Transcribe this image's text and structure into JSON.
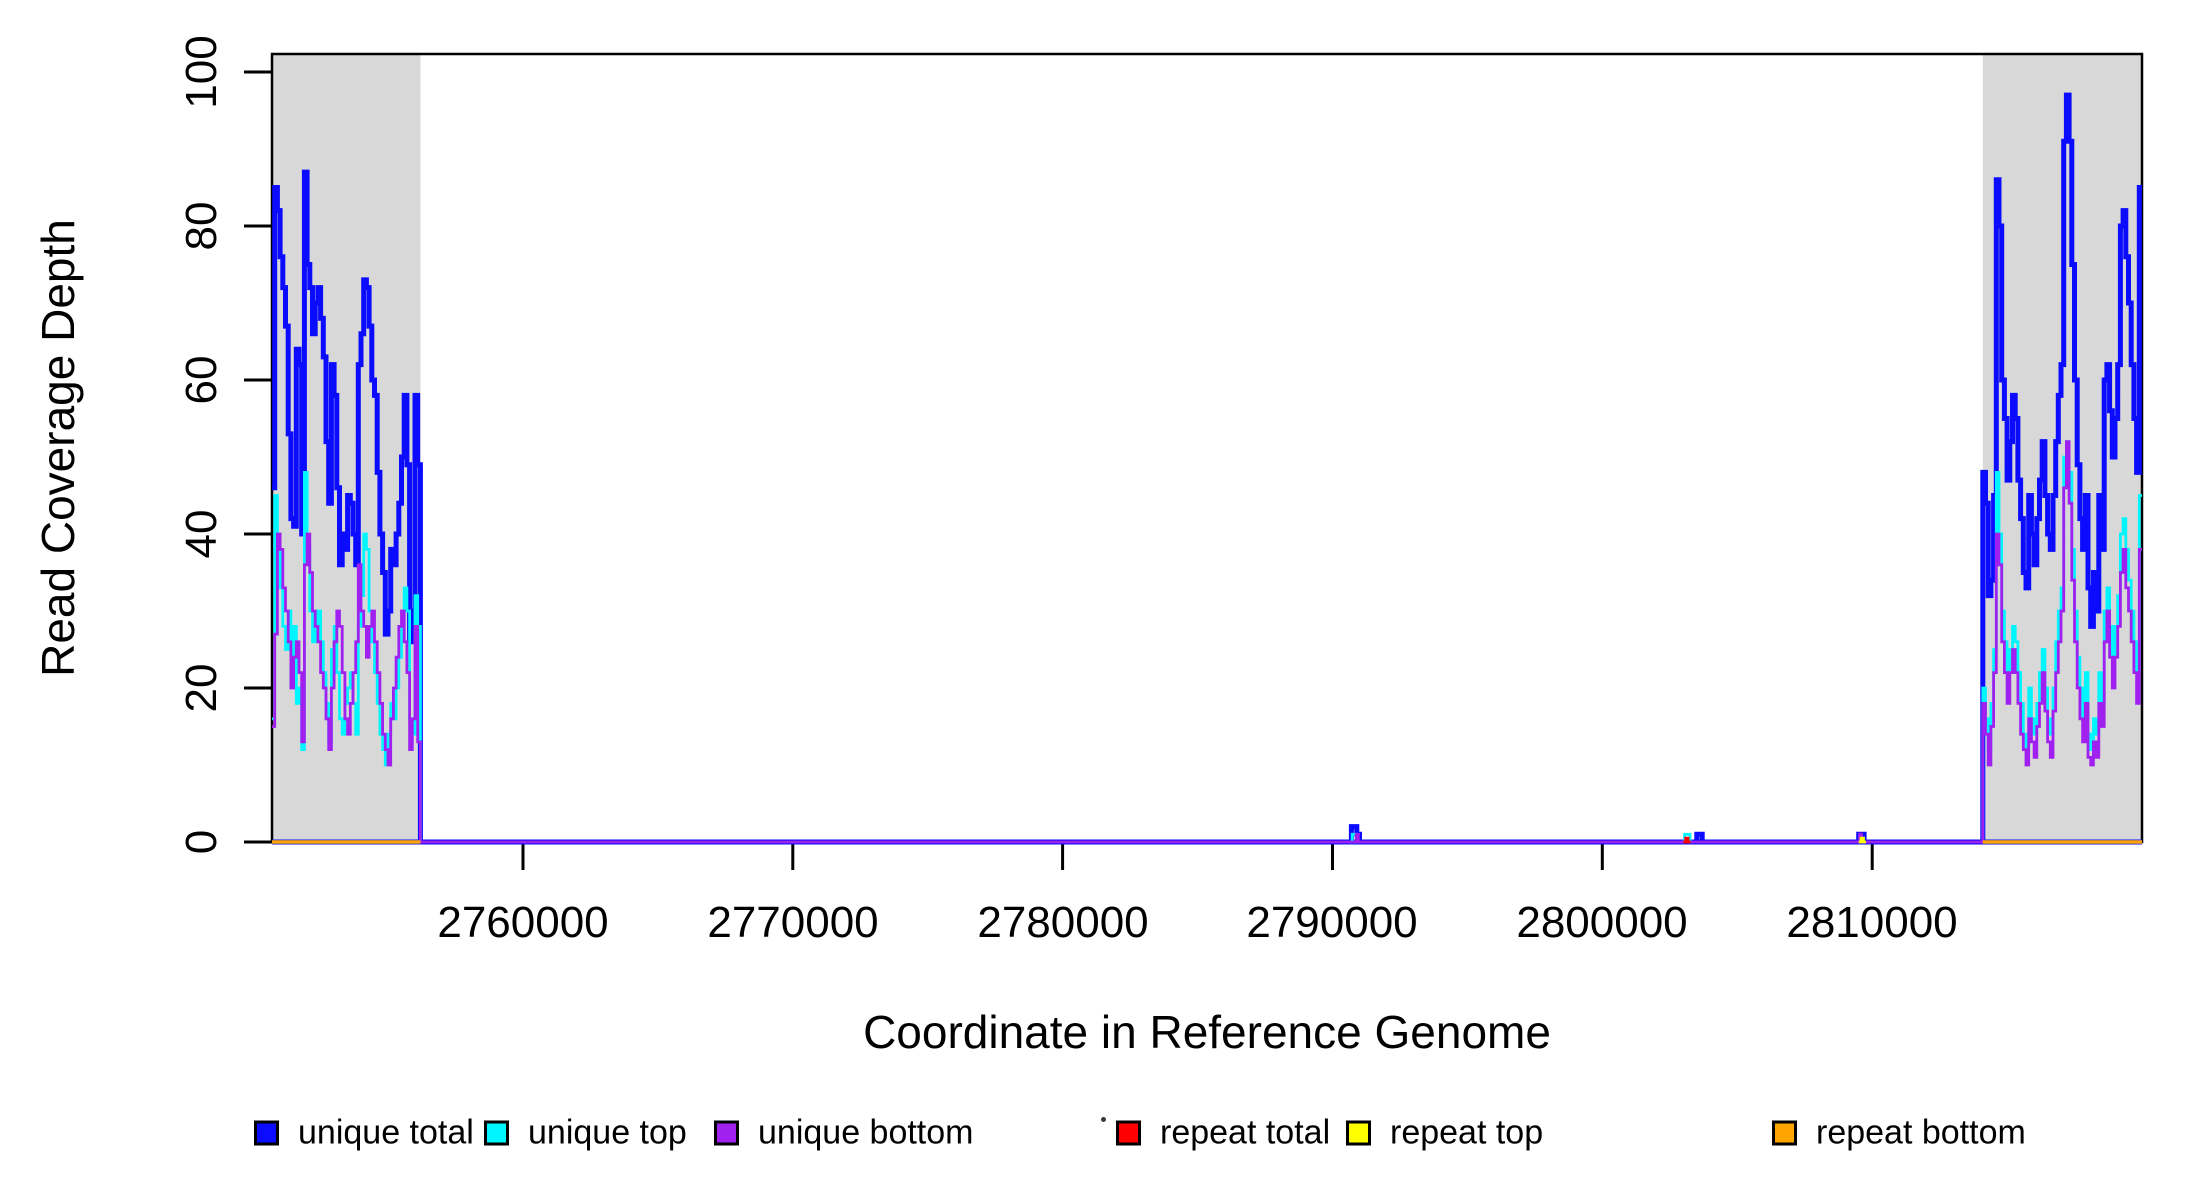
{
  "chart_data": {
    "type": "line",
    "subtype": "step-coverage-plot",
    "title": "",
    "xlabel": "Coordinate in Reference Genome",
    "ylabel": "Read Coverage Depth",
    "xlim": [
      2750700,
      2820000
    ],
    "ylim": [
      0,
      100
    ],
    "grid": false,
    "x_ticks": [
      2760000,
      2770000,
      2780000,
      2790000,
      2800000,
      2810000
    ],
    "y_ticks": [
      0,
      20,
      40,
      60,
      80,
      100
    ],
    "highlight_region_color": "#D8D8D8",
    "highlight_regions": [
      {
        "name": "left-repeat-region",
        "start": 2750700,
        "end": 2756200
      },
      {
        "name": "right-repeat-region",
        "start": 2814100,
        "end": 2820000
      }
    ],
    "series": [
      {
        "name": "unique total",
        "color": "#0B0BFF",
        "width": 5,
        "segments": [
          {
            "start": 2750700,
            "bin": 69300,
            "values": [
              0
            ]
          },
          {
            "start": 2750700,
            "bin": 100,
            "values": [
              46,
              85,
              82,
              76,
              72,
              67,
              53,
              42,
              41,
              64,
              62,
              40,
              87,
              75,
              72,
              66,
              70,
              72,
              68,
              63,
              52,
              44,
              62,
              58,
              46,
              36,
              40,
              38,
              45,
              44,
              40,
              36,
              62,
              66,
              73,
              72,
              67,
              60,
              58,
              48,
              40,
              35,
              27,
              30,
              38,
              36,
              40,
              44,
              50,
              58,
              49,
              26,
              30,
              58,
              49,
              0
            ]
          },
          {
            "start": 2790600,
            "bin": 100,
            "values": [
              0,
              2,
              2,
              1,
              0
            ]
          },
          {
            "start": 2803400,
            "bin": 100,
            "values": [
              0,
              1,
              1,
              0
            ]
          },
          {
            "start": 2809400,
            "bin": 100,
            "values": [
              0,
              1,
              1,
              0
            ]
          },
          {
            "start": 2814000,
            "bin": 100,
            "values": [
              0,
              48,
              44,
              32,
              34,
              45,
              86,
              80,
              60,
              55,
              47,
              52,
              58,
              55,
              47,
              42,
              35,
              33,
              45,
              40,
              36,
              42,
              47,
              52,
              45,
              40,
              38,
              45,
              52,
              58,
              62,
              91,
              97,
              91,
              75,
              60,
              49,
              42,
              38,
              45,
              33,
              28,
              35,
              30,
              45,
              38,
              60,
              62,
              56,
              50,
              55,
              62,
              80,
              82,
              76,
              70,
              62,
              55,
              48,
              85
            ]
          }
        ]
      },
      {
        "name": "unique top",
        "color": "#00F6FF",
        "width": 2.8,
        "segments": [
          {
            "start": 2750700,
            "bin": 100,
            "values": [
              16,
              45,
              40,
              33,
              28,
              25,
              30,
              22,
              28,
              18,
              20,
              12,
              48,
              38,
              30,
              26,
              28,
              30,
              26,
              22,
              18,
              13,
              25,
              28,
              22,
              16,
              14,
              18,
              20,
              22,
              18,
              14,
              28,
              32,
              40,
              38,
              30,
              26,
              22,
              18,
              14,
              12,
              10,
              14,
              18,
              16,
              20,
              24,
              28,
              33,
              30,
              16,
              14,
              32,
              28,
              0
            ]
          },
          {
            "start": 2790650,
            "bin": 80,
            "values": [
              0,
              1,
              1,
              0
            ]
          },
          {
            "start": 2802950,
            "bin": 100,
            "values": [
              0,
              1,
              1,
              0
            ]
          },
          {
            "start": 2814000,
            "bin": 100,
            "values": [
              0,
              20,
              16,
              12,
              18,
              25,
              48,
              40,
              30,
              26,
              22,
              25,
              28,
              26,
              22,
              18,
              14,
              12,
              20,
              16,
              14,
              18,
              22,
              25,
              20,
              16,
              14,
              20,
              26,
              30,
              33,
              50,
              52,
              48,
              38,
              30,
              24,
              20,
              16,
              22,
              14,
              12,
              16,
              14,
              22,
              18,
              30,
              33,
              28,
              24,
              28,
              32,
              40,
              42,
              38,
              34,
              30,
              26,
              22,
              45
            ]
          }
        ]
      },
      {
        "name": "unique bottom",
        "color": "#A020F0",
        "width": 2.8,
        "segments": [
          {
            "start": 2750700,
            "bin": 69300,
            "values": [
              0
            ]
          },
          {
            "start": 2750700,
            "bin": 100,
            "values": [
              15,
              27,
              40,
              38,
              33,
              30,
              26,
              20,
              24,
              26,
              22,
              13,
              36,
              40,
              35,
              30,
              28,
              26,
              22,
              20,
              16,
              12,
              20,
              26,
              30,
              28,
              22,
              16,
              14,
              18,
              22,
              26,
              36,
              30,
              28,
              24,
              28,
              30,
              26,
              22,
              18,
              14,
              12,
              10,
              16,
              20,
              24,
              28,
              30,
              26,
              22,
              12,
              16,
              28,
              13,
              0
            ]
          },
          {
            "start": 2790800,
            "bin": 80,
            "values": [
              0,
              1,
              0
            ]
          },
          {
            "start": 2809450,
            "bin": 80,
            "values": [
              0,
              1,
              0
            ]
          },
          {
            "start": 2814000,
            "bin": 100,
            "values": [
              0,
              18,
              14,
              10,
              15,
              22,
              40,
              36,
              26,
              22,
              18,
              22,
              25,
              22,
              18,
              14,
              12,
              10,
              16,
              13,
              11,
              15,
              18,
              22,
              17,
              13,
              11,
              17,
              22,
              26,
              30,
              46,
              52,
              44,
              34,
              26,
              20,
              16,
              13,
              18,
              11,
              10,
              13,
              11,
              18,
              15,
              26,
              30,
              24,
              20,
              24,
              28,
              35,
              38,
              33,
              30,
              26,
              22,
              18,
              38
            ]
          }
        ]
      },
      {
        "name": "repeat total",
        "color": "#FF0000",
        "width": 2.8,
        "segments": [
          {
            "start": 2803000,
            "bin": 90,
            "values": [
              0,
              0.5,
              0
            ]
          }
        ]
      },
      {
        "name": "repeat top",
        "color": "#FFFF00",
        "width": 2.8,
        "segments": [
          {
            "start": 2809500,
            "bin": 90,
            "values": [
              0,
              0.5,
              0
            ]
          }
        ]
      },
      {
        "name": "repeat bottom",
        "color": "#FFA500",
        "width": 3.5,
        "segments": [
          {
            "start": 2750700,
            "bin": 5500,
            "values": [
              0
            ]
          },
          {
            "start": 2814100,
            "bin": 5900,
            "values": [
              0
            ]
          }
        ]
      }
    ],
    "legend": [
      {
        "label": "unique total",
        "color": "#0B0BFF"
      },
      {
        "label": "unique top",
        "color": "#00F6FF"
      },
      {
        "label": "unique bottom",
        "color": "#A020F0"
      },
      {
        "label": "repeat total",
        "color": "#FF0000"
      },
      {
        "label": "repeat top",
        "color": "#FFFF00"
      },
      {
        "label": "repeat bottom",
        "color": "#FFA500"
      }
    ],
    "legend_position": "bottom"
  }
}
